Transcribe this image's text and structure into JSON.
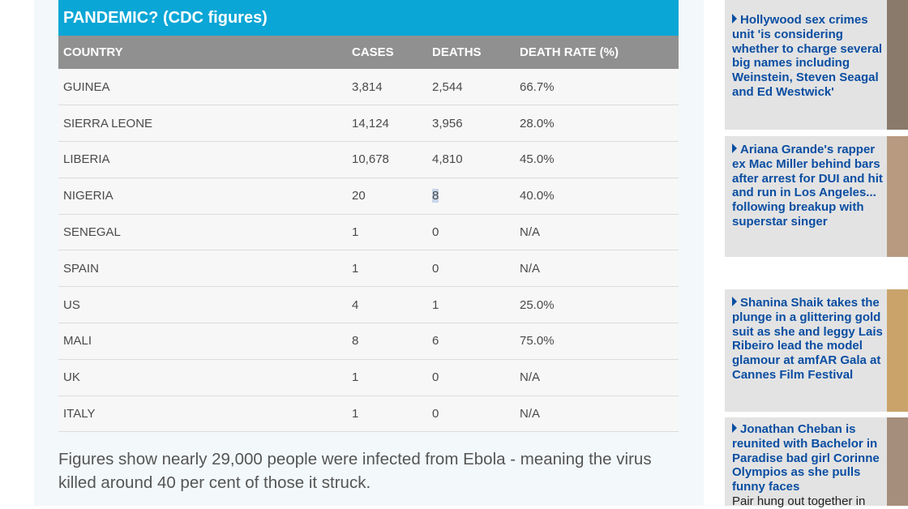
{
  "table": {
    "title": "PANDEMIC? (CDC figures)",
    "headers": [
      "COUNTRY",
      "CASES",
      "DEATHS",
      "DEATH RATE (%)"
    ],
    "rows": [
      [
        "GUINEA",
        "3,814",
        "2,544",
        "66.7%"
      ],
      [
        "SIERRA LEONE",
        "14,124",
        "3,956",
        "28.0%"
      ],
      [
        "LIBERIA",
        "10,678",
        "4,810",
        "45.0%"
      ],
      [
        "NIGERIA",
        "20",
        "8",
        "40.0%"
      ],
      [
        "SENEGAL",
        "1",
        "0",
        "N/A"
      ],
      [
        "SPAIN",
        "1",
        "0",
        "N/A"
      ],
      [
        "US",
        "4",
        "1",
        "25.0%"
      ],
      [
        "MALI",
        "8",
        "6",
        "75.0%"
      ],
      [
        "UK",
        "1",
        "0",
        "N/A"
      ],
      [
        "ITALY",
        "1",
        "0",
        "N/A"
      ]
    ]
  },
  "caption": "Figures show nearly 29,000 people were infected from Ebola - meaning the virus killed around 40 per cent of those it struck.",
  "sidebar": {
    "items": [
      {
        "headline": "Hollywood sex crimes unit 'is considering whether to charge several big names including Weinstein, Steven Seagal and Ed Westwick'"
      },
      {
        "headline": "Ariana Grande's rapper ex Mac Miller behind bars after arrest for DUI and hit and run in Los Angeles... following breakup with superstar singer"
      },
      {
        "headline": "Shanina Shaik takes the plunge in a glittering gold suit as she and leggy Lais Ribeiro  lead the model glamour at amfAR Gala at Cannes Film Festival"
      },
      {
        "headline": "Jonathan Cheban is reunited with Bachelor in Paradise bad girl Corinne Olympios as she pulls funny faces",
        "tail": "Pair hung out together in"
      }
    ]
  },
  "colors": {
    "title_bar": "#0aa6d6",
    "header_row": "#909090",
    "link": "#0b4ea2",
    "sidebar_bg": "#e3e3e3"
  }
}
